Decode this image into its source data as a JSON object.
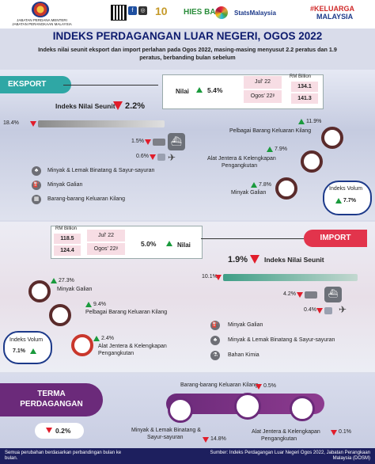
{
  "header": {
    "dept_line1": "JABATAN PERDANA MENTERI",
    "dept_line2": "JABATAN PERANGKAAN MALAYSIA",
    "hies_label": "HIES BA",
    "stats_label": "StatsMalaysia",
    "keluarga_line1": "#KELUARGA",
    "keluarga_line2": "MALAYSIA"
  },
  "title": "INDEKS PERDAGANGAN LUAR NEGERI, OGOS 2022",
  "subtitle_line1": "Indeks nilai seunit eksport dan import perlahan pada Ogos 2022, masing-masing menyusut 2.2 peratus dan 1.9",
  "subtitle_line2": "peratus, berbanding bulan sebelum",
  "export": {
    "tag": "EKSPORT",
    "nilai_label": "Nilai",
    "nilai_pct": "5.4%",
    "month1": "Jul' 22",
    "month2": "Ogos' 22ᵖ",
    "rm_label": "RM Billion",
    "val1": "134.1",
    "val2": "141.3",
    "ins_label": "Indeks Nilai Seunit",
    "ins_pct": "2.2%",
    "bar1": "18.4%",
    "bar2": "1.5%",
    "bar3": "0.6%",
    "right_pct1": "11.9%",
    "right_item1": "Pelbagai Barang Keluaran Kilang",
    "right_pct2": "7.9%",
    "right_item2a": "Alat Jentera & Kelengkapan",
    "right_item2b": "Pengangkutan",
    "right_pct3": "7.8%",
    "right_item3": "Minyak Galian",
    "legend1": "Minyak & Lemak Binatang & Sayur-sayuran",
    "legend2": "Minyak Galian",
    "legend3": "Barang-barang Keluaran Kilang",
    "volume_label": "Indeks Volum",
    "volume_pct": "7.7%"
  },
  "import": {
    "tag": "IMPORT",
    "rm_label": "RM Billion",
    "val1": "118.5",
    "val2": "124.4",
    "month1": "Jul' 22",
    "month2": "Ogos' 22ᵖ",
    "nilai_pct": "5.0%",
    "nilai_label": "Nilai",
    "ins_pct": "1.9%",
    "ins_label": "Indeks Nilai Seunit",
    "bar1": "10.1%",
    "bar2": "4.2%",
    "bar3": "0.4%",
    "left_pct1": "27.3%",
    "left_item1": "Minyak Galian",
    "left_pct2": "9.4%",
    "left_item2": "Pelbagai Barang Keluaran Kilang",
    "left_pct3": "2.4%",
    "left_item3a": "Alat Jentera & Kelengkapan",
    "left_item3b": "Pengangkutan",
    "volume_label": "Indeks Volum",
    "volume_pct": "7.1%",
    "legend1": "Minyak Galian",
    "legend2": "Minyak & Lemak Binatang & Sayur-sayuran",
    "legend3": "Bahan Kimia"
  },
  "terms": {
    "tag_line1": "TERMA",
    "tag_line2": "PERDAGANGAN",
    "main_pct": "0.2%",
    "top_item": "Barang-barang Keluaran Kilang",
    "top_pct": "0.5%",
    "item1a": "Minyak & Lemak Binatang &",
    "item1b": "Sayur-sayuran",
    "item1_pct": "14.8%",
    "item2a": "Alat Jentera & Kelengkapan",
    "item2b": "Pengangkutan",
    "item2_pct": "0.1%"
  },
  "footer": {
    "note1": "Semua perubahan berdasarkan perbandingan bulan ke",
    "note2": "bulan.",
    "source1": "Sumber: Indeks Perdagangan Luar Negeri Ogos 2022, Jabatan Perangkaan",
    "source2": "Malaysia (DOSM)"
  },
  "colors": {
    "navy": "#0d1b6e",
    "green": "#1a9a3c",
    "red": "#e11d2b",
    "export_teal": "#2fa7a5",
    "import_red": "#e2344c",
    "terms_purple": "#6b2a7a"
  }
}
